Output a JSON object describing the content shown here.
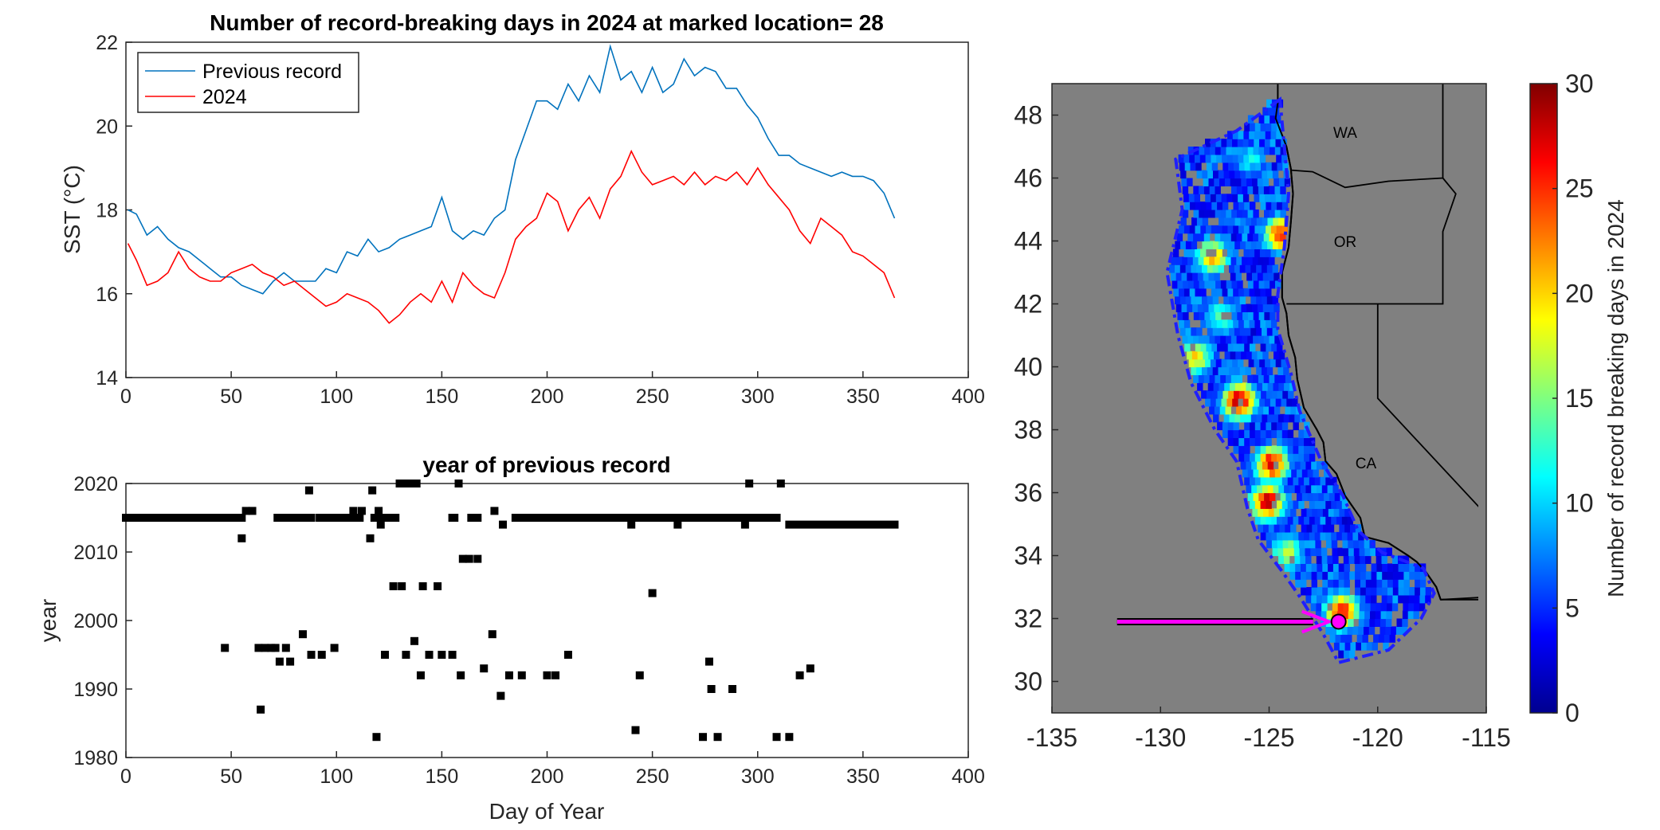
{
  "chart_data": [
    {
      "type": "line",
      "title": "Number of record-breaking days in 2024 at marked location= 28",
      "xlabel": "",
      "ylabel": "SST (°C)",
      "xlim": [
        0,
        400
      ],
      "ylim": [
        14,
        22
      ],
      "xticks": [
        "0",
        "50",
        "100",
        "150",
        "200",
        "250",
        "300",
        "350",
        "400"
      ],
      "yticks": [
        "14",
        "16",
        "18",
        "20",
        "22"
      ],
      "legend_position": "top-left",
      "series": [
        {
          "name": "Previous record",
          "color": "#0072BD",
          "x": [
            1,
            5,
            10,
            15,
            20,
            25,
            30,
            35,
            40,
            45,
            50,
            55,
            60,
            65,
            70,
            75,
            80,
            85,
            90,
            95,
            100,
            105,
            110,
            115,
            120,
            125,
            130,
            135,
            140,
            145,
            150,
            155,
            160,
            165,
            170,
            175,
            180,
            185,
            190,
            195,
            200,
            205,
            210,
            215,
            220,
            225,
            230,
            235,
            240,
            245,
            250,
            255,
            260,
            265,
            270,
            275,
            280,
            285,
            290,
            295,
            300,
            305,
            310,
            315,
            320,
            325,
            330,
            335,
            340,
            345,
            350,
            355,
            360,
            365
          ],
          "y": [
            18.0,
            17.9,
            17.4,
            17.6,
            17.3,
            17.1,
            17.0,
            16.8,
            16.6,
            16.4,
            16.4,
            16.2,
            16.1,
            16.0,
            16.3,
            16.5,
            16.3,
            16.3,
            16.3,
            16.6,
            16.5,
            17.0,
            16.9,
            17.3,
            17.0,
            17.1,
            17.3,
            17.4,
            17.5,
            17.6,
            18.3,
            17.5,
            17.3,
            17.5,
            17.4,
            17.8,
            18.0,
            19.2,
            19.9,
            20.6,
            20.6,
            20.4,
            21.0,
            20.6,
            21.2,
            20.8,
            21.9,
            21.1,
            21.3,
            20.8,
            21.4,
            20.8,
            21.0,
            21.6,
            21.2,
            21.4,
            21.3,
            20.9,
            20.9,
            20.5,
            20.2,
            19.7,
            19.3,
            19.3,
            19.1,
            19.0,
            18.9,
            18.8,
            18.9,
            18.8,
            18.8,
            18.7,
            18.4,
            17.8
          ]
        },
        {
          "name": "2024",
          "color": "#FF0000",
          "x": [
            1,
            5,
            10,
            15,
            20,
            25,
            30,
            35,
            40,
            45,
            50,
            55,
            60,
            65,
            70,
            75,
            80,
            85,
            90,
            95,
            100,
            105,
            110,
            115,
            120,
            125,
            130,
            135,
            140,
            145,
            150,
            155,
            160,
            165,
            170,
            175,
            180,
            185,
            190,
            195,
            200,
            205,
            210,
            215,
            220,
            225,
            230,
            235,
            240,
            245,
            250,
            255,
            260,
            265,
            270,
            275,
            280,
            285,
            290,
            295,
            300,
            305,
            310,
            315,
            320,
            325,
            330,
            335,
            340,
            345,
            350,
            355,
            360,
            365
          ],
          "y": [
            17.2,
            16.8,
            16.2,
            16.3,
            16.5,
            17.0,
            16.6,
            16.4,
            16.3,
            16.3,
            16.5,
            16.6,
            16.7,
            16.5,
            16.4,
            16.2,
            16.3,
            16.1,
            15.9,
            15.7,
            15.8,
            16.0,
            15.9,
            15.8,
            15.6,
            15.3,
            15.5,
            15.8,
            16.0,
            15.8,
            16.3,
            15.8,
            16.5,
            16.2,
            16.0,
            15.9,
            16.5,
            17.3,
            17.6,
            17.8,
            18.4,
            18.2,
            17.5,
            18.0,
            18.3,
            17.8,
            18.5,
            18.8,
            19.4,
            18.9,
            18.6,
            18.7,
            18.8,
            18.6,
            18.9,
            18.6,
            18.8,
            18.7,
            18.9,
            18.6,
            19.0,
            18.6,
            18.3,
            18.0,
            17.5,
            17.2,
            17.8,
            17.6,
            17.4,
            17.0,
            16.9,
            16.7,
            16.5,
            15.9
          ]
        }
      ]
    },
    {
      "type": "scatter",
      "title": "year of previous record",
      "xlabel": "Day of Year",
      "ylabel": "year",
      "xlim": [
        0,
        400
      ],
      "ylim": [
        1980,
        2020
      ],
      "xticks": [
        "0",
        "50",
        "100",
        "150",
        "200",
        "250",
        "300",
        "350",
        "400"
      ],
      "yticks": [
        "1980",
        "1990",
        "2000",
        "2010",
        "2020"
      ],
      "marker": "square",
      "color": "#000000",
      "points": [
        [
          47,
          1996
        ],
        [
          55,
          2012
        ],
        [
          57,
          2016
        ],
        [
          60,
          2016
        ],
        [
          63,
          1996
        ],
        [
          64,
          1987
        ],
        [
          66,
          1996
        ],
        [
          69,
          1996
        ],
        [
          71,
          1996
        ],
        [
          73,
          1994
        ],
        [
          76,
          1996
        ],
        [
          78,
          1994
        ],
        [
          84,
          1998
        ],
        [
          87,
          2019
        ],
        [
          88,
          1995
        ],
        [
          93,
          1995
        ],
        [
          99,
          1996
        ],
        [
          108,
          2016
        ],
        [
          112,
          2016
        ],
        [
          116,
          2012
        ],
        [
          117,
          2019
        ],
        [
          119,
          1983
        ],
        [
          120,
          2016
        ],
        [
          121,
          2014
        ],
        [
          123,
          1995
        ],
        [
          127,
          2005
        ],
        [
          131,
          2005
        ],
        [
          133,
          1995
        ],
        [
          135,
          2020
        ],
        [
          137,
          1997
        ],
        [
          140,
          1992
        ],
        [
          141,
          2005
        ],
        [
          144,
          1995
        ],
        [
          148,
          2005
        ],
        [
          150,
          1995
        ],
        [
          155,
          1995
        ],
        [
          158,
          2020
        ],
        [
          159,
          1992
        ],
        [
          160,
          2009
        ],
        [
          163,
          2009
        ],
        [
          167,
          2009
        ],
        [
          170,
          1993
        ],
        [
          174,
          1998
        ],
        [
          175,
          2016
        ],
        [
          178,
          1989
        ],
        [
          179,
          2014
        ],
        [
          182,
          1992
        ],
        [
          188,
          1992
        ],
        [
          200,
          1992
        ],
        [
          204,
          1992
        ],
        [
          210,
          1995
        ],
        [
          240,
          2014
        ],
        [
          242,
          1984
        ],
        [
          244,
          1992
        ],
        [
          250,
          2004
        ],
        [
          262,
          2014
        ],
        [
          274,
          1983
        ],
        [
          277,
          1994
        ],
        [
          278,
          1990
        ],
        [
          281,
          1983
        ],
        [
          288,
          1990
        ],
        [
          294,
          2014
        ],
        [
          296,
          2020
        ],
        [
          309,
          1983
        ],
        [
          311,
          2020
        ],
        [
          315,
          1983
        ],
        [
          320,
          1992
        ],
        [
          325,
          1993
        ]
      ],
      "segments": [
        [
          0,
          2015,
          53
        ],
        [
          54,
          2015,
          55
        ],
        [
          72,
          2015,
          88
        ],
        [
          92,
          2015,
          98
        ],
        [
          98,
          2015,
          111
        ],
        [
          118,
          2015,
          123
        ],
        [
          125,
          2015,
          128
        ],
        [
          210,
          2015,
          214
        ],
        [
          155,
          2015,
          156
        ],
        [
          164,
          2015,
          167
        ],
        [
          185,
          2015,
          215
        ],
        [
          216,
          2015,
          245
        ],
        [
          245,
          2015,
          290
        ],
        [
          291,
          2015,
          309
        ],
        [
          315,
          2014,
          365
        ],
        [
          130,
          2020,
          138
        ]
      ]
    },
    {
      "type": "heatmap",
      "title": "",
      "xlim": [
        -135,
        -115
      ],
      "ylim": [
        29,
        49
      ],
      "xticks": [
        "-135",
        "-130",
        "-125",
        "-120",
        "-115"
      ],
      "yticks": [
        "30",
        "32",
        "34",
        "36",
        "38",
        "40",
        "42",
        "44",
        "46",
        "48"
      ],
      "colorbar_label": "Number of record breaking days in 2024",
      "colorbar_ticks": [
        "0",
        "5",
        "10",
        "15",
        "20",
        "25",
        "30"
      ],
      "colorbar_range": [
        0,
        30
      ],
      "region_labels": [
        "WA",
        "OR",
        "CA"
      ],
      "marked_location": {
        "lon": -121.8,
        "lat": 31.9,
        "value": 28
      },
      "arrow_from": {
        "lon": -132,
        "lat": 31.9
      },
      "hotspots": [
        {
          "lon": -126.5,
          "lat": 38.8,
          "value": 28
        },
        {
          "lon": -125.0,
          "lat": 36.8,
          "value": 26
        },
        {
          "lon": -125.2,
          "lat": 35.6,
          "value": 27
        },
        {
          "lon": -127.7,
          "lat": 43.4,
          "value": 20
        },
        {
          "lon": -124.6,
          "lat": 44.1,
          "value": 24
        },
        {
          "lon": -128.5,
          "lat": 40.2,
          "value": 18
        },
        {
          "lon": -121.8,
          "lat": 32.1,
          "value": 25
        },
        {
          "lon": -124.3,
          "lat": 34.0,
          "value": 15
        },
        {
          "lon": -127.3,
          "lat": 41.5,
          "value": 12
        },
        {
          "lon": -126.0,
          "lat": 46.5,
          "value": 10
        }
      ]
    }
  ]
}
